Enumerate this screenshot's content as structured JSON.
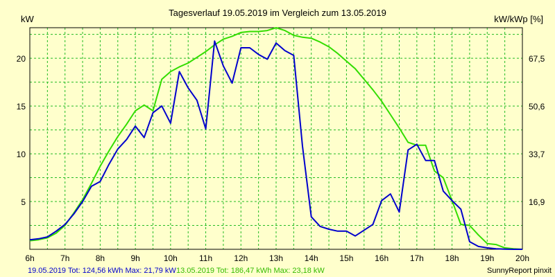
{
  "chart_data": {
    "type": "line",
    "title": "Tagesverlauf 19.05.2019 im Vergleich zum 13.05.2019",
    "ylabel_left": "kW",
    "ylabel_right": "kW/kWp [%]",
    "ylim": [
      0,
      23.2
    ],
    "xlim": [
      6,
      20
    ],
    "x_ticks": [
      "6h",
      "7h",
      "8h",
      "9h",
      "10h",
      "11h",
      "12h",
      "13h",
      "14h",
      "15h",
      "16h",
      "17h",
      "18h",
      "19h",
      "20h"
    ],
    "y_ticks_left": [
      "5",
      "10",
      "15",
      "20"
    ],
    "y_ticks_right": [
      {
        "label": "16,9",
        "value": 5
      },
      {
        "label": "33,7",
        "value": 10
      },
      {
        "label": "50,6",
        "value": 15
      },
      {
        "label": "67,5",
        "value": 20
      }
    ],
    "grid": true,
    "series": [
      {
        "name": "19.05.2019",
        "color": "#0000cc",
        "points": [
          [
            6.0,
            1.0
          ],
          [
            6.25,
            1.1
          ],
          [
            6.5,
            1.3
          ],
          [
            6.75,
            1.9
          ],
          [
            7.0,
            2.6
          ],
          [
            7.25,
            3.7
          ],
          [
            7.5,
            5.0
          ],
          [
            7.75,
            6.6
          ],
          [
            8.0,
            7.1
          ],
          [
            8.25,
            8.9
          ],
          [
            8.5,
            10.5
          ],
          [
            8.75,
            11.5
          ],
          [
            9.0,
            12.9
          ],
          [
            9.25,
            11.7
          ],
          [
            9.5,
            14.3
          ],
          [
            9.75,
            15.0
          ],
          [
            10.0,
            13.2
          ],
          [
            10.25,
            18.6
          ],
          [
            10.5,
            16.9
          ],
          [
            10.75,
            15.6
          ],
          [
            11.0,
            12.6
          ],
          [
            11.25,
            21.8
          ],
          [
            11.5,
            19.2
          ],
          [
            11.75,
            17.4
          ],
          [
            12.0,
            21.1
          ],
          [
            12.25,
            21.1
          ],
          [
            12.5,
            20.4
          ],
          [
            12.75,
            19.9
          ],
          [
            13.0,
            21.6
          ],
          [
            13.25,
            20.8
          ],
          [
            13.5,
            20.3
          ],
          [
            13.75,
            10.8
          ],
          [
            14.0,
            3.4
          ],
          [
            14.25,
            2.4
          ],
          [
            14.5,
            2.1
          ],
          [
            14.75,
            1.9
          ],
          [
            15.0,
            1.9
          ],
          [
            15.25,
            1.4
          ],
          [
            15.5,
            2.0
          ],
          [
            15.75,
            2.6
          ],
          [
            16.0,
            5.1
          ],
          [
            16.25,
            5.8
          ],
          [
            16.5,
            3.9
          ],
          [
            16.75,
            10.4
          ],
          [
            17.0,
            11.0
          ],
          [
            17.25,
            9.3
          ],
          [
            17.5,
            9.3
          ],
          [
            17.75,
            6.1
          ],
          [
            18.0,
            5.1
          ],
          [
            18.25,
            4.2
          ],
          [
            18.5,
            0.8
          ],
          [
            18.75,
            0.3
          ],
          [
            19.0,
            0.15
          ],
          [
            19.25,
            0.05
          ],
          [
            19.5,
            0.02
          ],
          [
            19.75,
            0.0
          ],
          [
            20.0,
            0.0
          ]
        ]
      },
      {
        "name": "13.05.2019",
        "color": "#33dd00",
        "points": [
          [
            6.0,
            0.9
          ],
          [
            6.25,
            1.0
          ],
          [
            6.5,
            1.2
          ],
          [
            6.75,
            1.7
          ],
          [
            7.0,
            2.5
          ],
          [
            7.25,
            3.8
          ],
          [
            7.5,
            5.2
          ],
          [
            7.75,
            6.9
          ],
          [
            8.0,
            8.7
          ],
          [
            8.25,
            10.3
          ],
          [
            8.5,
            11.8
          ],
          [
            8.75,
            13.1
          ],
          [
            9.0,
            14.5
          ],
          [
            9.25,
            15.1
          ],
          [
            9.5,
            14.5
          ],
          [
            9.75,
            17.8
          ],
          [
            10.0,
            18.6
          ],
          [
            10.25,
            19.1
          ],
          [
            10.5,
            19.5
          ],
          [
            10.75,
            20.1
          ],
          [
            11.0,
            20.7
          ],
          [
            11.25,
            21.4
          ],
          [
            11.5,
            22.0
          ],
          [
            11.75,
            22.3
          ],
          [
            12.0,
            22.7
          ],
          [
            12.25,
            22.8
          ],
          [
            12.5,
            22.8
          ],
          [
            12.75,
            22.9
          ],
          [
            13.0,
            23.2
          ],
          [
            13.25,
            22.9
          ],
          [
            13.5,
            22.4
          ],
          [
            13.75,
            22.2
          ],
          [
            14.0,
            22.1
          ],
          [
            14.25,
            21.7
          ],
          [
            14.5,
            21.2
          ],
          [
            14.75,
            20.5
          ],
          [
            15.0,
            19.7
          ],
          [
            15.25,
            18.9
          ],
          [
            15.5,
            17.8
          ],
          [
            15.75,
            16.7
          ],
          [
            16.0,
            15.5
          ],
          [
            16.25,
            14.1
          ],
          [
            16.5,
            12.7
          ],
          [
            16.75,
            11.2
          ],
          [
            17.0,
            10.9
          ],
          [
            17.25,
            10.9
          ],
          [
            17.5,
            8.2
          ],
          [
            17.75,
            7.5
          ],
          [
            18.0,
            5.1
          ],
          [
            18.25,
            2.6
          ],
          [
            18.5,
            2.5
          ],
          [
            18.75,
            1.5
          ],
          [
            19.0,
            0.6
          ],
          [
            19.25,
            0.5
          ],
          [
            19.5,
            0.15
          ],
          [
            19.75,
            0.05
          ],
          [
            20.0,
            0.0
          ]
        ]
      }
    ]
  },
  "footer": {
    "series1_text": "19.05.2019 Tot: 124,56 kWh Max: 21,79 kW",
    "series2_text": "13.05.2019 Tot: 186,47 kWh Max: 23,18 kW",
    "credit": "SunnyReport pinxit"
  }
}
